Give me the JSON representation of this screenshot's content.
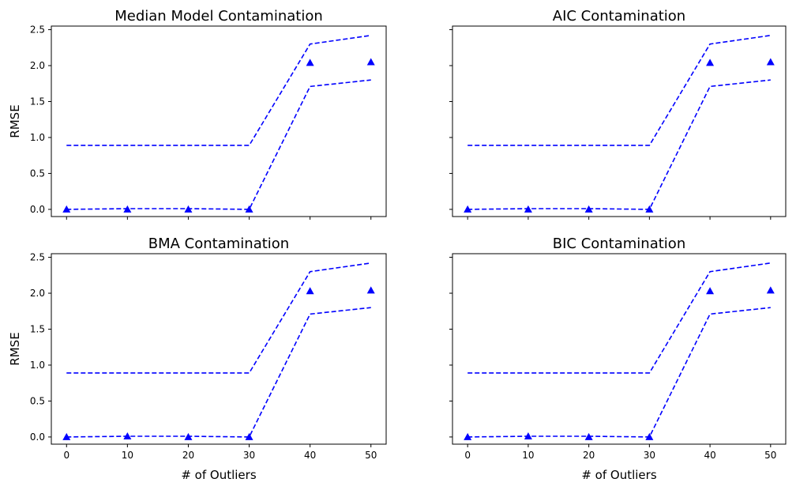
{
  "chart_data": [
    {
      "type": "line",
      "title": "Median Model Contamination",
      "xlabel": "",
      "ylabel": "RMSE",
      "x": [
        0,
        10,
        20,
        30,
        40,
        50
      ],
      "xticks": [
        "0",
        "10",
        "20",
        "30",
        "40",
        "50"
      ],
      "yticks": [
        "0.0",
        "0.5",
        "1.0",
        "1.5",
        "2.0",
        "2.5"
      ],
      "xlim": [
        -2.5,
        52.5
      ],
      "ylim": [
        -0.1,
        2.55
      ],
      "color": "#0000ff",
      "series": [
        {
          "name": "rmse",
          "style": "triangle-markers",
          "values": [
            0.0,
            0.0,
            0.0,
            0.0,
            2.04,
            2.05
          ]
        },
        {
          "name": "upper-bound",
          "style": "dashed",
          "values": [
            0.89,
            0.89,
            0.89,
            0.89,
            2.3,
            2.42
          ]
        },
        {
          "name": "lower-bound",
          "style": "dashed",
          "values": [
            0.0,
            0.01,
            0.01,
            0.0,
            1.71,
            1.8
          ]
        }
      ]
    },
    {
      "type": "line",
      "title": "AIC Contamination",
      "xlabel": "",
      "ylabel": "",
      "x": [
        0,
        10,
        20,
        30,
        40,
        50
      ],
      "xticks": [
        "0",
        "10",
        "20",
        "30",
        "40",
        "50"
      ],
      "yticks": [
        "0.0",
        "0.5",
        "1.0",
        "1.5",
        "2.0",
        "2.5"
      ],
      "xlim": [
        -2.5,
        52.5
      ],
      "ylim": [
        -0.1,
        2.55
      ],
      "color": "#0000ff",
      "series": [
        {
          "name": "rmse",
          "style": "triangle-markers",
          "values": [
            0.0,
            0.0,
            0.0,
            0.0,
            2.04,
            2.05
          ]
        },
        {
          "name": "upper-bound",
          "style": "dashed",
          "values": [
            0.89,
            0.89,
            0.89,
            0.89,
            2.3,
            2.42
          ]
        },
        {
          "name": "lower-bound",
          "style": "dashed",
          "values": [
            0.0,
            0.01,
            0.01,
            0.0,
            1.71,
            1.8
          ]
        }
      ]
    },
    {
      "type": "line",
      "title": "BMA Contamination",
      "xlabel": "# of Outliers",
      "ylabel": "RMSE",
      "x": [
        0,
        10,
        20,
        30,
        40,
        50
      ],
      "xticks": [
        "0",
        "10",
        "20",
        "30",
        "40",
        "50"
      ],
      "yticks": [
        "0.0",
        "0.5",
        "1.0",
        "1.5",
        "2.0",
        "2.5"
      ],
      "xlim": [
        -2.5,
        52.5
      ],
      "ylim": [
        -0.1,
        2.55
      ],
      "color": "#0000ff",
      "series": [
        {
          "name": "rmse",
          "style": "triangle-markers",
          "values": [
            0.0,
            0.01,
            0.0,
            0.0,
            2.03,
            2.04
          ]
        },
        {
          "name": "upper-bound",
          "style": "dashed",
          "values": [
            0.89,
            0.89,
            0.89,
            0.89,
            2.3,
            2.42
          ]
        },
        {
          "name": "lower-bound",
          "style": "dashed",
          "values": [
            0.0,
            0.01,
            0.01,
            0.0,
            1.71,
            1.8
          ]
        }
      ]
    },
    {
      "type": "line",
      "title": "BIC Contamination",
      "xlabel": "# of Outliers",
      "ylabel": "",
      "x": [
        0,
        10,
        20,
        30,
        40,
        50
      ],
      "xticks": [
        "0",
        "10",
        "20",
        "30",
        "40",
        "50"
      ],
      "yticks": [
        "0.0",
        "0.5",
        "1.0",
        "1.5",
        "2.0",
        "2.5"
      ],
      "xlim": [
        -2.5,
        52.5
      ],
      "ylim": [
        -0.1,
        2.55
      ],
      "color": "#0000ff",
      "series": [
        {
          "name": "rmse",
          "style": "triangle-markers",
          "values": [
            0.0,
            0.01,
            0.0,
            0.0,
            2.03,
            2.04
          ]
        },
        {
          "name": "upper-bound",
          "style": "dashed",
          "values": [
            0.89,
            0.89,
            0.89,
            0.89,
            2.3,
            2.42
          ]
        },
        {
          "name": "lower-bound",
          "style": "dashed",
          "values": [
            0.0,
            0.01,
            0.01,
            0.0,
            1.71,
            1.8
          ]
        }
      ]
    }
  ]
}
